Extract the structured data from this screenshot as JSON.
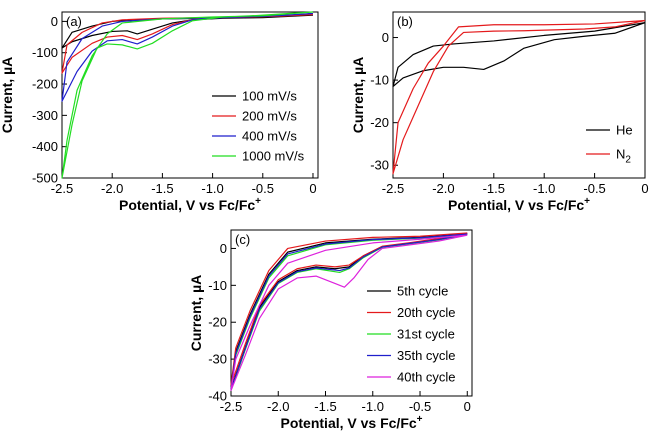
{
  "chart_data": [
    {
      "type": "line",
      "panel_label": "(a)",
      "xlabel": "Potential, V vs Fc/Fc",
      "xlabel_sup": "+",
      "ylabel": "Current, µA",
      "xlim": [
        -2.5,
        0.05
      ],
      "ylim": [
        -500,
        30
      ],
      "xticks": [
        -2.5,
        -2.0,
        -1.5,
        -1.0,
        -0.5,
        0
      ],
      "xtick_labels": [
        "-2.5",
        "-2.0",
        "-1.5",
        "-1.0",
        "-0.5",
        "0"
      ],
      "yticks": [
        -500,
        -400,
        -300,
        -200,
        -100,
        0
      ],
      "ytick_labels": [
        "-500",
        "-400",
        "-300",
        "-200",
        "-100",
        "0"
      ],
      "legend_position": "bottom-right",
      "series": [
        {
          "name": "100 mV/s",
          "color": "#000000",
          "points": [
            [
              0.0,
              20
            ],
            [
              -0.3,
              15
            ],
            [
              -0.6,
              12
            ],
            [
              -0.9,
              10
            ],
            [
              -1.2,
              5
            ],
            [
              -1.4,
              -5
            ],
            [
              -1.6,
              -25
            ],
            [
              -1.75,
              -40
            ],
            [
              -1.85,
              -30
            ],
            [
              -2.0,
              -32
            ],
            [
              -2.2,
              -45
            ],
            [
              -2.4,
              -65
            ],
            [
              -2.5,
              -85
            ],
            [
              -2.4,
              -35
            ],
            [
              -2.2,
              -15
            ],
            [
              -2.0,
              0
            ],
            [
              -1.8,
              5
            ],
            [
              -1.5,
              8
            ],
            [
              -1.0,
              10
            ],
            [
              -0.5,
              12
            ],
            [
              0.0,
              20
            ]
          ]
        },
        {
          "name": "200 mV/s",
          "color": "#e41a1c",
          "points": [
            [
              0.0,
              22
            ],
            [
              -0.3,
              17
            ],
            [
              -0.6,
              14
            ],
            [
              -0.9,
              12
            ],
            [
              -1.2,
              6
            ],
            [
              -1.4,
              -10
            ],
            [
              -1.6,
              -40
            ],
            [
              -1.75,
              -58
            ],
            [
              -1.9,
              -45
            ],
            [
              -2.05,
              -50
            ],
            [
              -2.2,
              -70
            ],
            [
              -2.4,
              -115
            ],
            [
              -2.5,
              -165
            ],
            [
              -2.45,
              -75
            ],
            [
              -2.3,
              -35
            ],
            [
              -2.1,
              -5
            ],
            [
              -1.9,
              5
            ],
            [
              -1.5,
              10
            ],
            [
              -1.0,
              12
            ],
            [
              -0.5,
              15
            ],
            [
              0.0,
              22
            ]
          ]
        },
        {
          "name": "400 mV/s",
          "color": "#1f1fcc",
          "points": [
            [
              0.0,
              25
            ],
            [
              -0.3,
              19
            ],
            [
              -0.6,
              15
            ],
            [
              -0.9,
              12
            ],
            [
              -1.2,
              5
            ],
            [
              -1.4,
              -15
            ],
            [
              -1.6,
              -50
            ],
            [
              -1.75,
              -72
            ],
            [
              -1.9,
              -58
            ],
            [
              -2.05,
              -62
            ],
            [
              -2.2,
              -95
            ],
            [
              -2.35,
              -160
            ],
            [
              -2.5,
              -255
            ],
            [
              -2.45,
              -130
            ],
            [
              -2.3,
              -55
            ],
            [
              -2.1,
              -15
            ],
            [
              -1.9,
              0
            ],
            [
              -1.5,
              8
            ],
            [
              -1.0,
              12
            ],
            [
              -0.5,
              16
            ],
            [
              0.0,
              25
            ]
          ]
        },
        {
          "name": "1000 mV/s",
          "color": "#22dd22",
          "points": [
            [
              0.0,
              30
            ],
            [
              -0.3,
              24
            ],
            [
              -0.6,
              18
            ],
            [
              -0.9,
              14
            ],
            [
              -1.2,
              2
            ],
            [
              -1.4,
              -30
            ],
            [
              -1.6,
              -70
            ],
            [
              -1.75,
              -88
            ],
            [
              -1.9,
              -75
            ],
            [
              -2.05,
              -72
            ],
            [
              -2.15,
              -85
            ],
            [
              -2.3,
              -190
            ],
            [
              -2.4,
              -330
            ],
            [
              -2.5,
              -500
            ],
            [
              -2.45,
              -380
            ],
            [
              -2.35,
              -220
            ],
            [
              -2.2,
              -110
            ],
            [
              -2.05,
              -40
            ],
            [
              -1.9,
              -5
            ],
            [
              -1.5,
              8
            ],
            [
              -1.0,
              14
            ],
            [
              -0.5,
              18
            ],
            [
              0.0,
              30
            ]
          ]
        }
      ]
    },
    {
      "type": "line",
      "panel_label": "(b)",
      "xlabel": "Potential, V vs Fc/Fc",
      "xlabel_sup": "+",
      "ylabel": "Current, µA",
      "xlim": [
        -2.5,
        0.0
      ],
      "ylim": [
        -33,
        6
      ],
      "xticks": [
        -2.5,
        -2.0,
        -1.5,
        -1.0,
        -0.5,
        0
      ],
      "xtick_labels": [
        "-2.5",
        "-2.0",
        "-1.5",
        "-1.0",
        "-0.5",
        "0"
      ],
      "yticks": [
        -30,
        -20,
        -10,
        0
      ],
      "ytick_labels": [
        "-30",
        "-20",
        "-10",
        "0"
      ],
      "legend_position": "bottom-right",
      "series": [
        {
          "name": "He",
          "color": "#000000",
          "points": [
            [
              0.0,
              3.5
            ],
            [
              -0.3,
              1.0
            ],
            [
              -0.6,
              0.3
            ],
            [
              -0.9,
              -0.5
            ],
            [
              -1.2,
              -2.5
            ],
            [
              -1.4,
              -5.5
            ],
            [
              -1.6,
              -7.5
            ],
            [
              -1.8,
              -7.0
            ],
            [
              -2.0,
              -7.0
            ],
            [
              -2.2,
              -7.8
            ],
            [
              -2.4,
              -9.5
            ],
            [
              -2.5,
              -11.5
            ],
            [
              -2.45,
              -7.0
            ],
            [
              -2.3,
              -4.0
            ],
            [
              -2.1,
              -2.0
            ],
            [
              -1.9,
              -1.5
            ],
            [
              -1.5,
              -0.8
            ],
            [
              -1.0,
              0.5
            ],
            [
              -0.5,
              1.5
            ],
            [
              0.0,
              3.5
            ]
          ]
        },
        {
          "name": "N2",
          "color": "#e41a1c",
          "points": [
            [
              0.0,
              4.0
            ],
            [
              -0.3,
              2.5
            ],
            [
              -0.6,
              2.0
            ],
            [
              -0.9,
              1.8
            ],
            [
              -1.2,
              1.6
            ],
            [
              -1.5,
              1.5
            ],
            [
              -1.8,
              1.2
            ],
            [
              -1.95,
              -2.0
            ],
            [
              -2.1,
              -8.0
            ],
            [
              -2.25,
              -16.0
            ],
            [
              -2.4,
              -24.0
            ],
            [
              -2.5,
              -32.0
            ],
            [
              -2.45,
              -20.0
            ],
            [
              -2.3,
              -12.0
            ],
            [
              -2.15,
              -6.0
            ],
            [
              -2.0,
              -2.0
            ],
            [
              -1.85,
              2.5
            ],
            [
              -1.5,
              3.0
            ],
            [
              -1.0,
              3.0
            ],
            [
              -0.5,
              3.2
            ],
            [
              0.0,
              4.0
            ]
          ]
        }
      ]
    },
    {
      "type": "line",
      "panel_label": "(c)",
      "xlabel": "Potential, V vs Fc/Fc",
      "xlabel_sup": "+",
      "ylabel": "Current, µA",
      "xlim": [
        -2.5,
        0.05
      ],
      "ylim": [
        -40,
        5
      ],
      "xticks": [
        -2.5,
        -2.0,
        -1.5,
        -1.0,
        -0.5,
        0
      ],
      "xtick_labels": [
        "-2.5",
        "-2.0",
        "-1.5",
        "-1.0",
        "-0.5",
        "0"
      ],
      "yticks": [
        -40,
        -30,
        -20,
        -10,
        0
      ],
      "ytick_labels": [
        "-40",
        "-30",
        "-20",
        "-10",
        "0"
      ],
      "legend_position": "bottom-right",
      "series": [
        {
          "name": "5th cycle",
          "color": "#000000",
          "points": [
            [
              0.0,
              4.0
            ],
            [
              -0.3,
              2.5
            ],
            [
              -0.6,
              1.5
            ],
            [
              -0.9,
              0.5
            ],
            [
              -1.1,
              -2.0
            ],
            [
              -1.25,
              -5.0
            ],
            [
              -1.4,
              -5.5
            ],
            [
              -1.6,
              -5.0
            ],
            [
              -1.8,
              -6.0
            ],
            [
              -2.0,
              -9.0
            ],
            [
              -2.2,
              -16.0
            ],
            [
              -2.35,
              -27.0
            ],
            [
              -2.5,
              -38.0
            ],
            [
              -2.45,
              -28.0
            ],
            [
              -2.3,
              -18.0
            ],
            [
              -2.1,
              -7.0
            ],
            [
              -1.9,
              -1.0
            ],
            [
              -1.5,
              1.5
            ],
            [
              -1.0,
              2.5
            ],
            [
              -0.5,
              3.0
            ],
            [
              0.0,
              4.0
            ]
          ]
        },
        {
          "name": "20th cycle",
          "color": "#e41a1c",
          "points": [
            [
              0.0,
              4.2
            ],
            [
              -0.3,
              2.7
            ],
            [
              -0.6,
              1.6
            ],
            [
              -0.9,
              0.6
            ],
            [
              -1.1,
              -2.0
            ],
            [
              -1.25,
              -4.5
            ],
            [
              -1.4,
              -5.0
            ],
            [
              -1.6,
              -4.5
            ],
            [
              -1.8,
              -5.5
            ],
            [
              -2.0,
              -8.5
            ],
            [
              -2.2,
              -15.5
            ],
            [
              -2.35,
              -26.0
            ],
            [
              -2.5,
              -37.0
            ],
            [
              -2.45,
              -27.0
            ],
            [
              -2.3,
              -17.0
            ],
            [
              -2.1,
              -6.0
            ],
            [
              -1.9,
              0.0
            ],
            [
              -1.5,
              2.0
            ],
            [
              -1.0,
              3.0
            ],
            [
              -0.5,
              3.3
            ],
            [
              0.0,
              4.2
            ]
          ]
        },
        {
          "name": "31st cycle",
          "color": "#22dd22",
          "points": [
            [
              0.0,
              3.8
            ],
            [
              -0.3,
              2.3
            ],
            [
              -0.6,
              1.3
            ],
            [
              -0.9,
              0.3
            ],
            [
              -1.1,
              -2.5
            ],
            [
              -1.25,
              -5.5
            ],
            [
              -1.35,
              -6.5
            ],
            [
              -1.6,
              -5.5
            ],
            [
              -1.8,
              -6.5
            ],
            [
              -2.0,
              -9.5
            ],
            [
              -2.2,
              -17.0
            ],
            [
              -2.35,
              -27.5
            ],
            [
              -2.5,
              -38.5
            ],
            [
              -2.45,
              -29.0
            ],
            [
              -2.3,
              -19.0
            ],
            [
              -2.1,
              -8.0
            ],
            [
              -1.9,
              -2.0
            ],
            [
              -1.5,
              1.0
            ],
            [
              -1.0,
              2.2
            ],
            [
              -0.5,
              2.8
            ],
            [
              0.0,
              3.8
            ]
          ]
        },
        {
          "name": "35th cycle",
          "color": "#1f1fcc",
          "points": [
            [
              0.0,
              3.9
            ],
            [
              -0.3,
              2.4
            ],
            [
              -0.6,
              1.4
            ],
            [
              -0.9,
              0.4
            ],
            [
              -1.1,
              -2.3
            ],
            [
              -1.25,
              -5.3
            ],
            [
              -1.35,
              -6.0
            ],
            [
              -1.6,
              -5.3
            ],
            [
              -1.8,
              -6.3
            ],
            [
              -2.0,
              -9.3
            ],
            [
              -2.2,
              -16.5
            ],
            [
              -2.35,
              -27.2
            ],
            [
              -2.5,
              -38.2
            ],
            [
              -2.45,
              -28.5
            ],
            [
              -2.3,
              -18.5
            ],
            [
              -2.1,
              -7.5
            ],
            [
              -1.9,
              -1.5
            ],
            [
              -1.5,
              1.2
            ],
            [
              -1.0,
              2.4
            ],
            [
              -0.5,
              2.9
            ],
            [
              0.0,
              3.9
            ]
          ]
        },
        {
          "name": "40th cycle",
          "color": "#dd22dd",
          "points": [
            [
              0.0,
              3.6
            ],
            [
              -0.3,
              2.0
            ],
            [
              -0.6,
              1.0
            ],
            [
              -0.9,
              0.0
            ],
            [
              -1.05,
              -3.0
            ],
            [
              -1.2,
              -8.0
            ],
            [
              -1.3,
              -10.5
            ],
            [
              -1.4,
              -9.5
            ],
            [
              -1.6,
              -7.5
            ],
            [
              -1.8,
              -8.0
            ],
            [
              -2.0,
              -11.0
            ],
            [
              -2.2,
              -19.0
            ],
            [
              -2.35,
              -29.0
            ],
            [
              -2.5,
              -38.5
            ],
            [
              -2.45,
              -30.0
            ],
            [
              -2.3,
              -21.0
            ],
            [
              -2.1,
              -10.0
            ],
            [
              -1.9,
              -4.0
            ],
            [
              -1.5,
              -0.5
            ],
            [
              -1.0,
              1.5
            ],
            [
              -0.5,
              2.5
            ],
            [
              0.0,
              3.6
            ]
          ]
        }
      ]
    }
  ]
}
